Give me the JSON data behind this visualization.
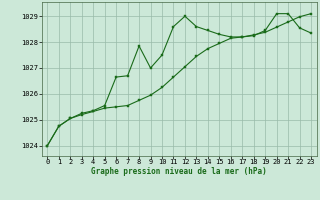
{
  "xlabel": "Graphe pression niveau de la mer (hPa)",
  "xlim": [
    -0.5,
    23.5
  ],
  "ylim": [
    1023.6,
    1029.55
  ],
  "yticks": [
    1024,
    1025,
    1026,
    1027,
    1028,
    1029
  ],
  "xticks": [
    0,
    1,
    2,
    3,
    4,
    5,
    6,
    7,
    8,
    9,
    10,
    11,
    12,
    13,
    14,
    15,
    16,
    17,
    18,
    19,
    20,
    21,
    22,
    23
  ],
  "bg_color": "#cce8d8",
  "grid_color": "#99bbaa",
  "line_color": "#1a6b1a",
  "series1": [
    1024.0,
    1024.75,
    1025.05,
    1025.25,
    1025.35,
    1025.55,
    1026.65,
    1026.7,
    1027.85,
    1027.0,
    1027.5,
    1028.6,
    1029.0,
    1028.6,
    1028.45,
    1028.3,
    1028.2,
    1028.2,
    1028.25,
    1028.45,
    1029.1,
    1029.1,
    1028.55,
    1028.35
  ],
  "series2": [
    1024.0,
    1024.75,
    1025.05,
    1025.2,
    1025.32,
    1025.45,
    1025.5,
    1025.55,
    1025.75,
    1025.95,
    1026.25,
    1026.65,
    1027.05,
    1027.45,
    1027.75,
    1027.95,
    1028.15,
    1028.2,
    1028.28,
    1028.38,
    1028.58,
    1028.78,
    1028.98,
    1029.1
  ],
  "tick_fontsize": 5.0,
  "xlabel_fontsize": 5.5,
  "line_width": 0.8,
  "marker_size": 1.8
}
